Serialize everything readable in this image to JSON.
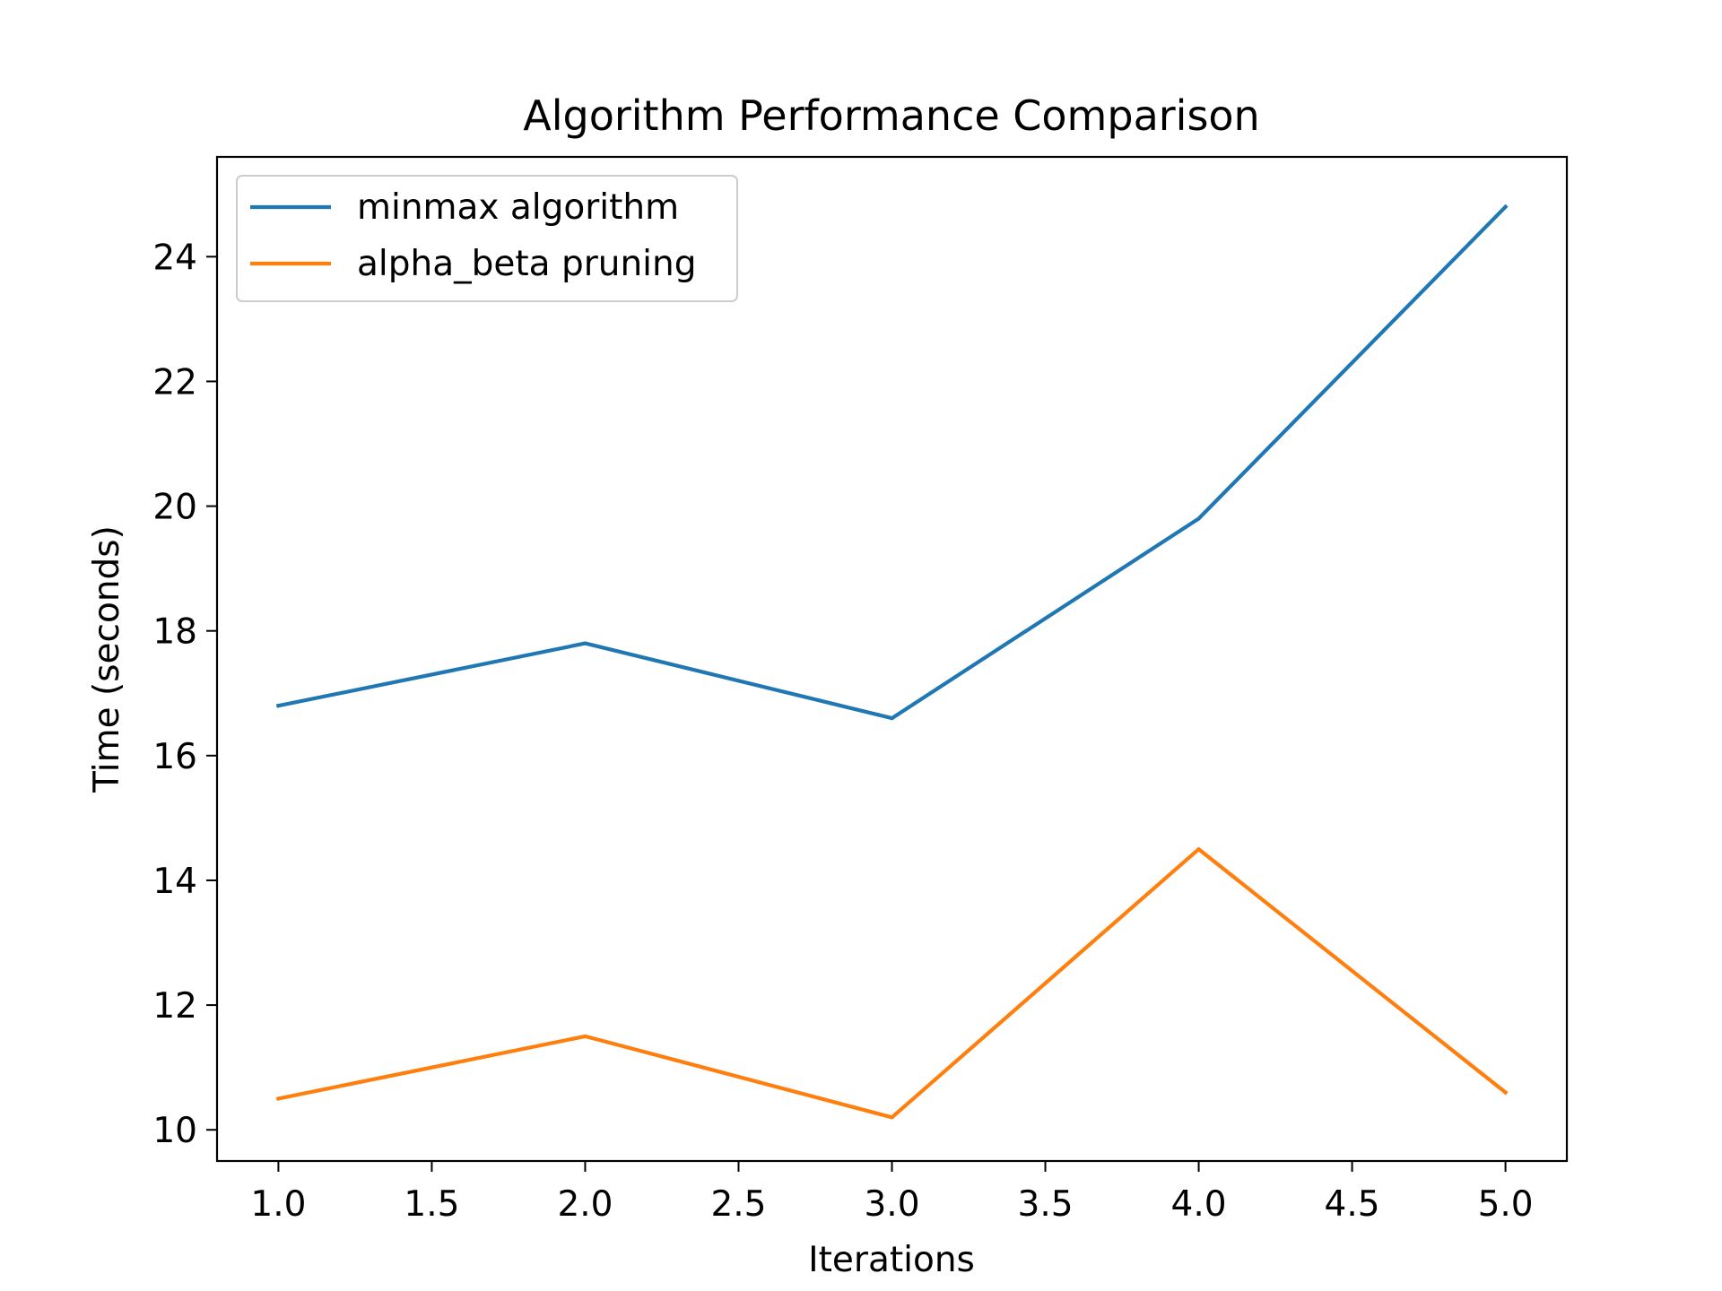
{
  "chart_data": {
    "type": "line",
    "title": "Algorithm Performance Comparison",
    "xlabel": "Iterations",
    "ylabel": "Time (seconds)",
    "xlim": [
      0.8,
      5.2
    ],
    "ylim": [
      9.5,
      25.6
    ],
    "xticks": [
      1.0,
      1.5,
      2.0,
      2.5,
      3.0,
      3.5,
      4.0,
      4.5,
      5.0
    ],
    "xtick_labels": [
      "1.0",
      "1.5",
      "2.0",
      "2.5",
      "3.0",
      "3.5",
      "4.0",
      "4.5",
      "5.0"
    ],
    "yticks": [
      10,
      12,
      14,
      16,
      18,
      20,
      22,
      24
    ],
    "ytick_labels": [
      "10",
      "12",
      "14",
      "16",
      "18",
      "20",
      "22",
      "24"
    ],
    "grid": false,
    "legend_position": "upper-left",
    "x": [
      1,
      2,
      3,
      4,
      5
    ],
    "series": [
      {
        "name": "minmax algorithm",
        "color": "#1f77b4",
        "values": [
          16.8,
          17.8,
          16.6,
          19.8,
          24.8
        ]
      },
      {
        "name": "alpha_beta pruning",
        "color": "#ff7f0e",
        "values": [
          10.5,
          11.5,
          10.2,
          14.5,
          10.6
        ]
      }
    ]
  }
}
